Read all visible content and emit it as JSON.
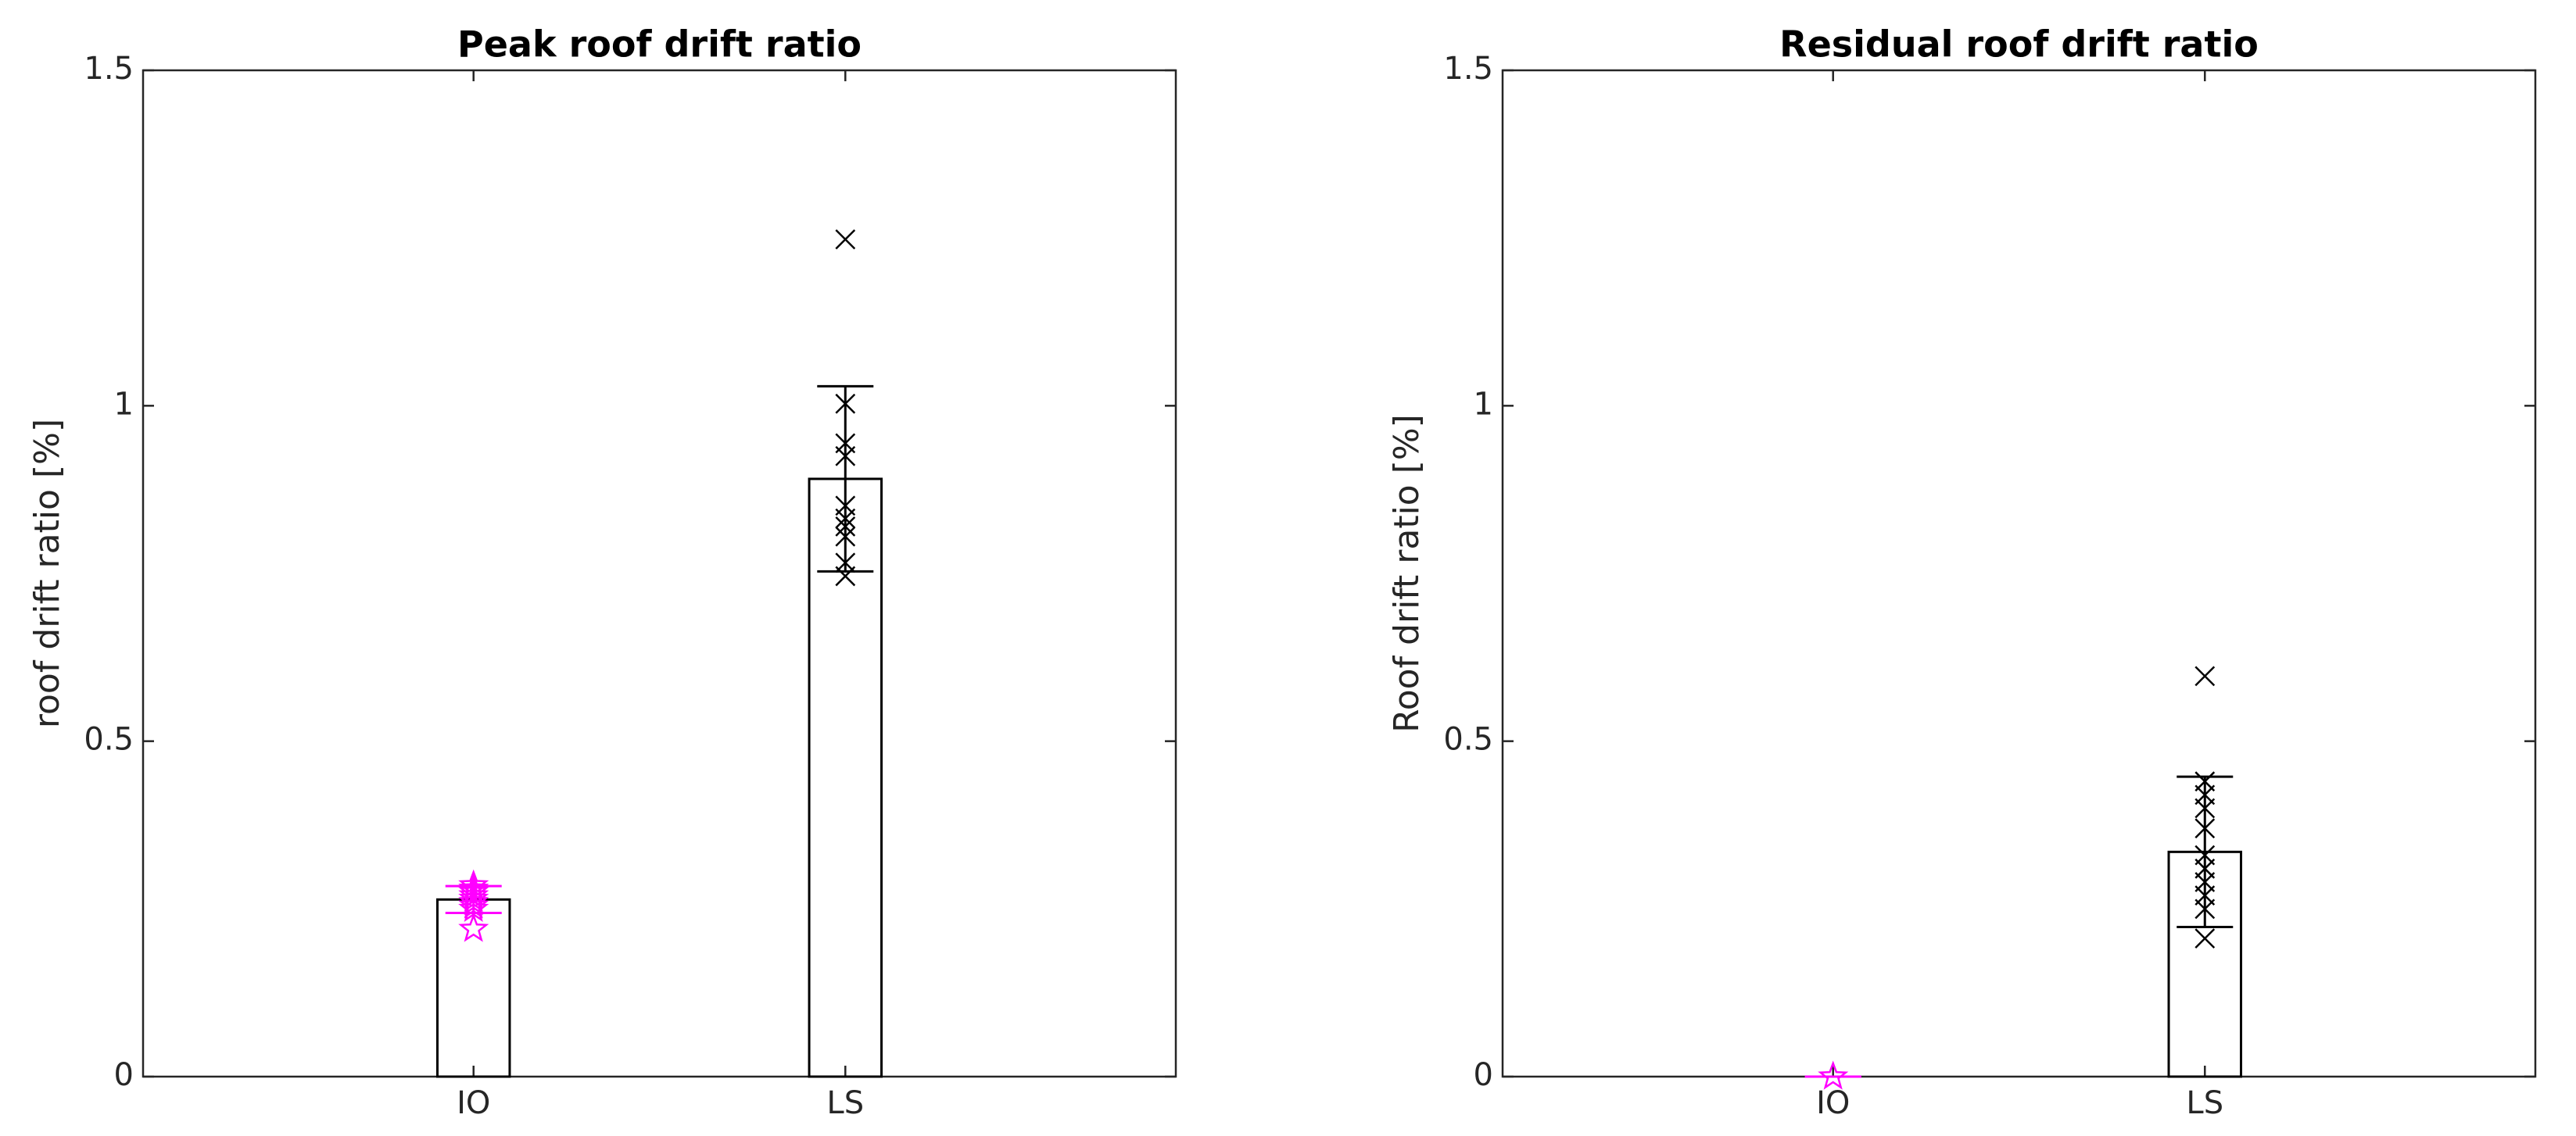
{
  "chart_data": [
    {
      "type": "bar",
      "title": "Peak roof drift ratio",
      "ylabel": "roof drift ratio [%]",
      "categories": [
        "IO",
        "LS"
      ],
      "values": [
        0.264,
        0.891
      ],
      "errors": [
        0.02,
        0.138
      ],
      "points": [
        [
          0.285,
          0.28,
          0.275,
          0.27,
          0.265,
          0.26,
          0.255,
          0.25,
          0.22
        ],
        [
          1.248,
          1.003,
          0.944,
          0.925,
          0.851,
          0.832,
          0.82,
          0.805,
          0.766,
          0.746
        ]
      ],
      "marker_colors": [
        "#ff00ff",
        "#000000"
      ],
      "markers": [
        "star",
        "x"
      ],
      "ylim": [
        0,
        1.5
      ],
      "yticks": [
        0,
        0.5,
        1,
        1.5
      ]
    },
    {
      "type": "bar",
      "title": "Residual roof drift ratio",
      "ylabel": "Roof drift ratio [%]",
      "categories": [
        "IO",
        "LS"
      ],
      "values": [
        0,
        0.335
      ],
      "errors": [
        0,
        0.112
      ],
      "points": [
        [
          0
        ],
        [
          0.597,
          0.44,
          0.42,
          0.4,
          0.37,
          0.33,
          0.31,
          0.29,
          0.27,
          0.25,
          0.206
        ]
      ],
      "marker_colors": [
        "#ff00ff",
        "#000000"
      ],
      "markers": [
        "star",
        "x"
      ],
      "ylim": [
        0,
        1.5
      ],
      "yticks": [
        0,
        0.5,
        1,
        1.5
      ]
    }
  ]
}
